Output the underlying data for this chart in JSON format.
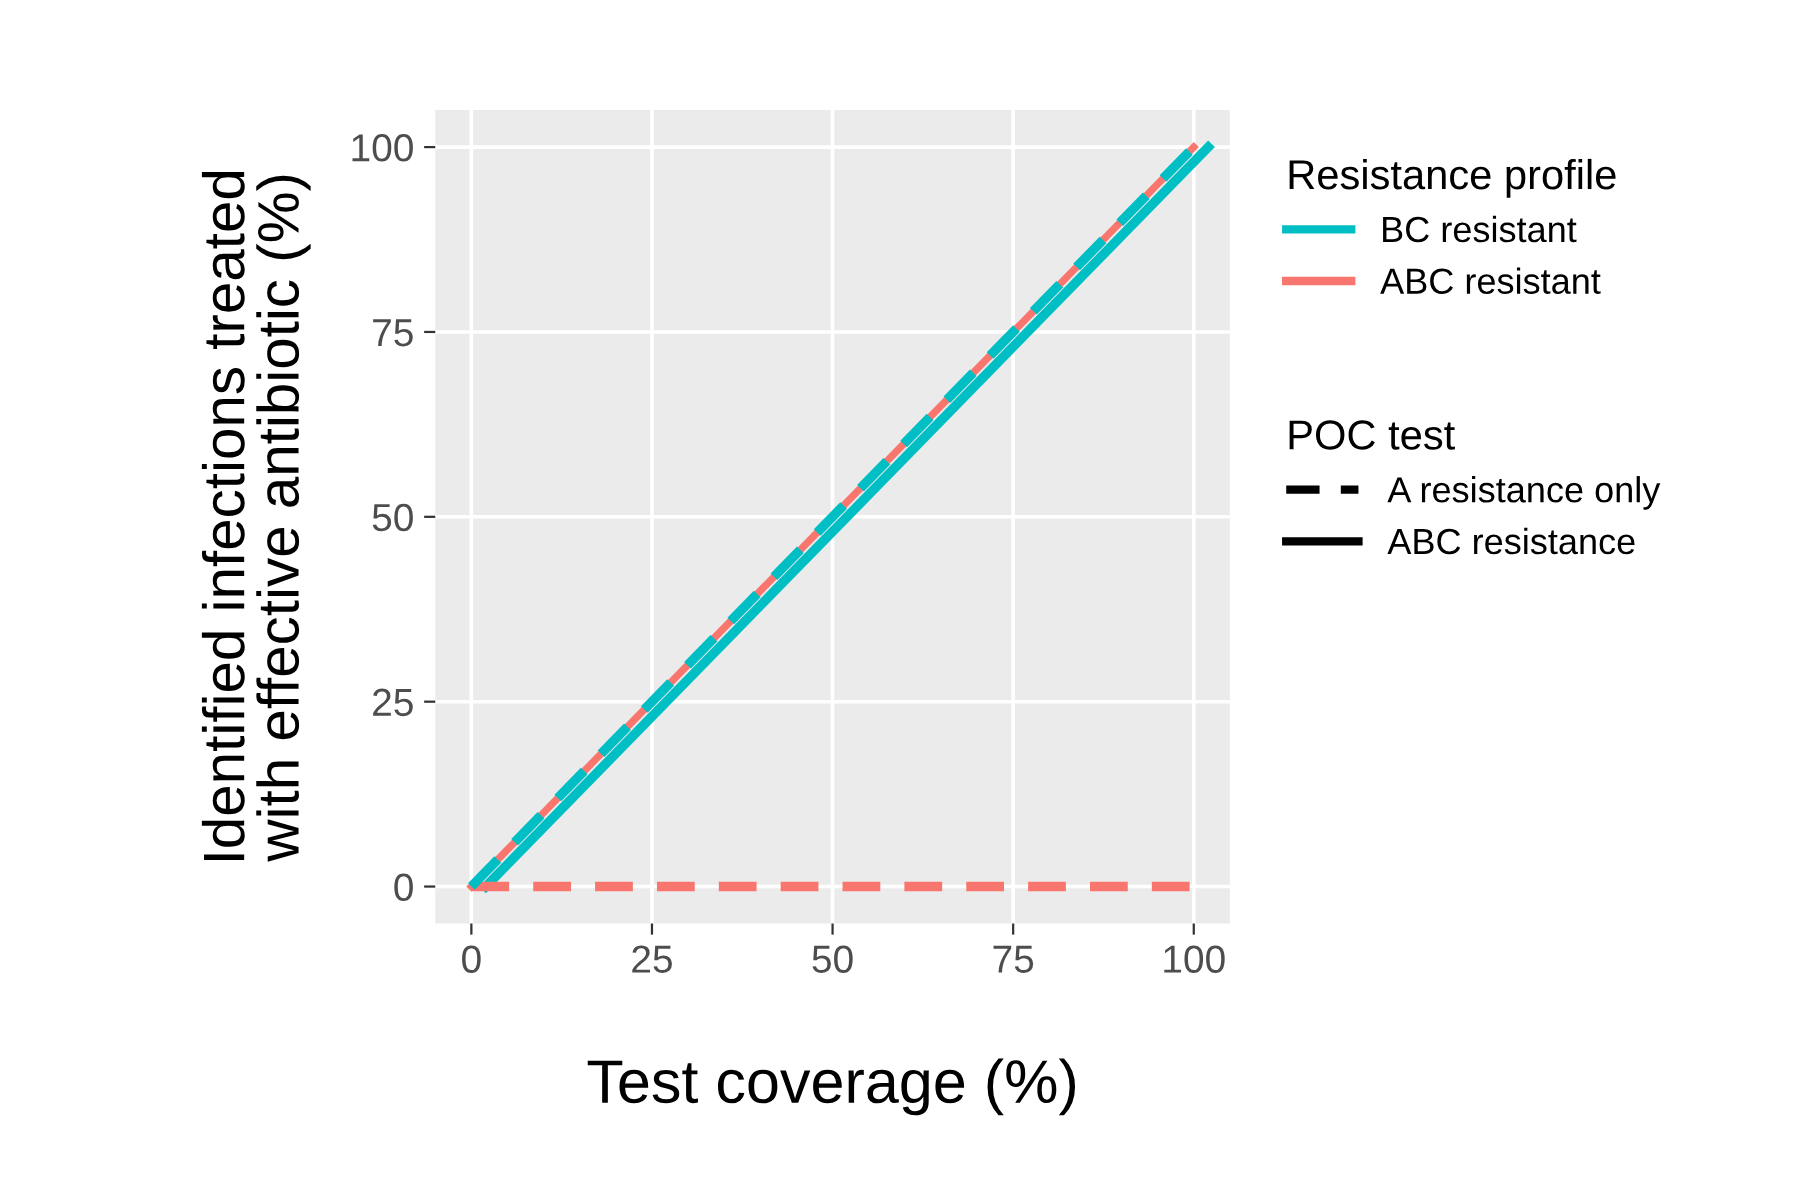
{
  "chart_data": {
    "type": "line",
    "xlabel": "Test coverage (%)",
    "ylabel": "Identified infections treated\nwith effective antibiotic (%)",
    "legend_title": [
      "Resistance profile",
      "POC test"
    ],
    "annotations": [
      "A resistance only",
      "ABC resistance"
    ],
    "x": [
      0,
      100
    ],
    "series": [
      {
        "name": "ABC resistant",
        "color": "#f8766d",
        "line_style": "solid",
        "values": [
          0,
          100
        ]
      },
      {
        "name": "BC resistant",
        "color": "#00bfc4",
        "line_style": "solid",
        "x": [
          2,
          102
        ],
        "values": [
          0,
          100
        ]
      },
      {
        "color": "#00bfc4",
        "line_style": "dashed",
        "values": [
          0,
          100
        ]
      },
      {
        "color": "#f8766d",
        "line_style": "dashed",
        "values": [
          0,
          0
        ]
      }
    ],
    "xlim": [
      -5,
      105
    ],
    "ylim": [
      -5,
      105
    ],
    "xticks": [
      0,
      25,
      50,
      75,
      100
    ],
    "yticks": [
      0,
      25,
      50,
      75,
      100
    ],
    "grid": true,
    "legend": "right",
    "marker": "none"
  }
}
